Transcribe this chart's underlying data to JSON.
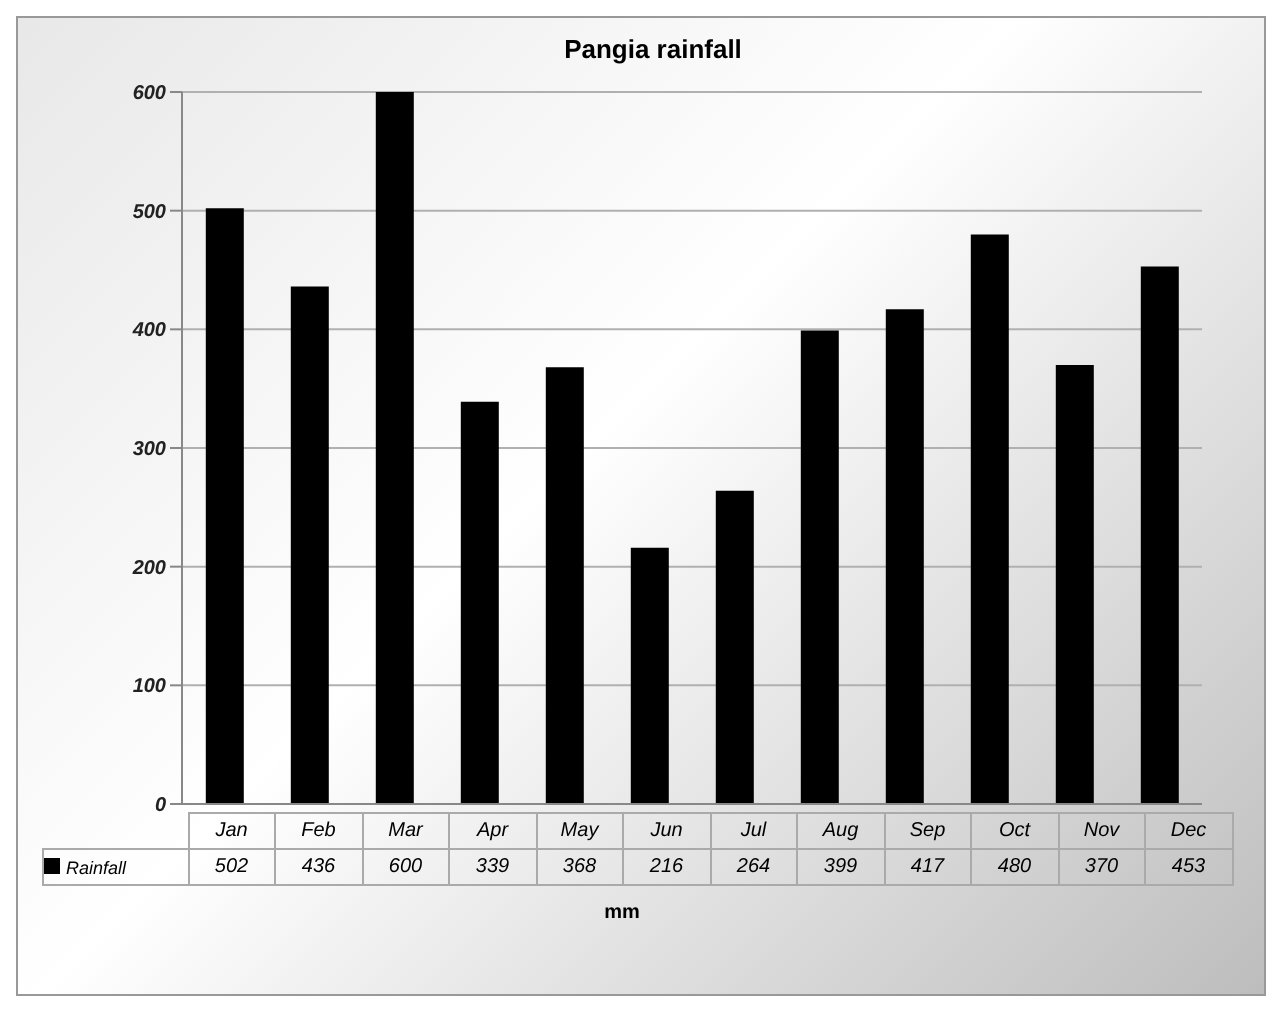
{
  "chart_data": {
    "type": "bar",
    "title": "Pangia rainfall",
    "xlabel": "mm",
    "categories": [
      "Jan",
      "Feb",
      "Mar",
      "Apr",
      "May",
      "Jun",
      "Jul",
      "Aug",
      "Sep",
      "Oct",
      "Nov",
      "Dec"
    ],
    "series": [
      {
        "name": "Rainfall",
        "color": "#000000",
        "values": [
          502,
          436,
          600,
          339,
          368,
          216,
          264,
          399,
          417,
          480,
          370,
          453
        ]
      }
    ],
    "ylim": [
      0,
      600
    ],
    "yticks": [
      0,
      100,
      200,
      300,
      400,
      500,
      600
    ],
    "grid": "y",
    "legend": "bottom left",
    "data_labels": true
  }
}
